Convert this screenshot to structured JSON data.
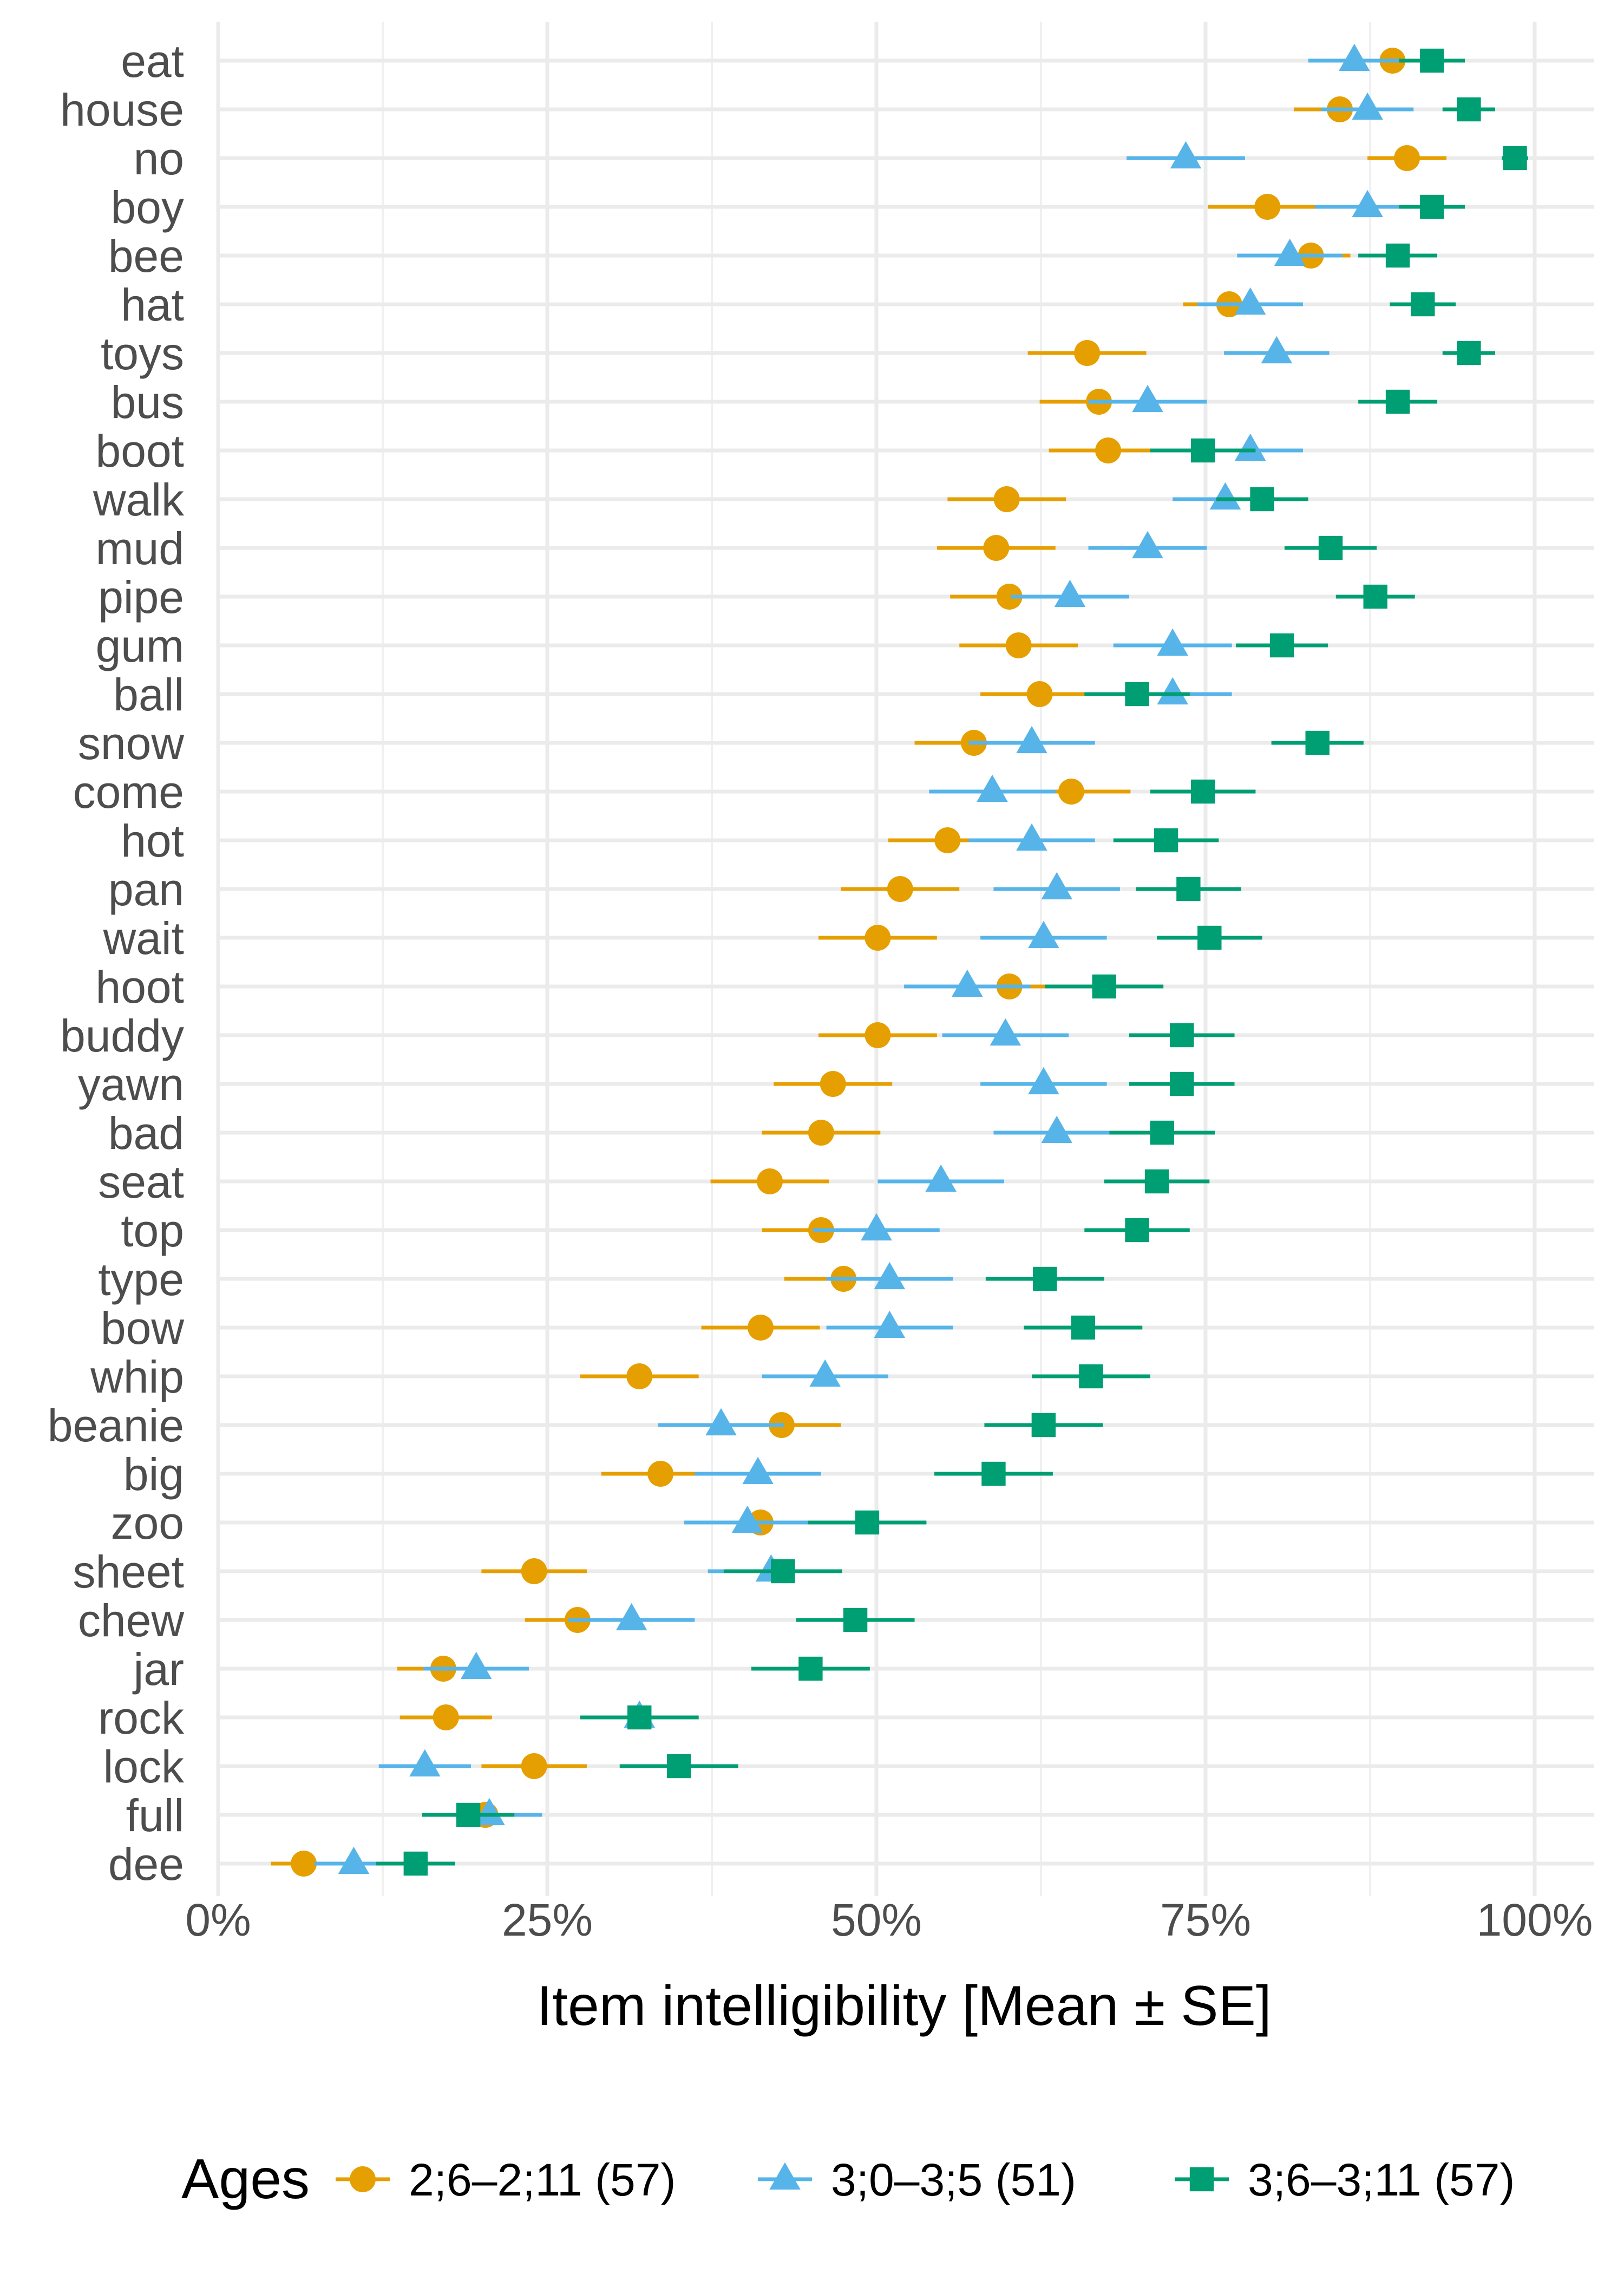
{
  "chart_data": {
    "type": "scatter",
    "subtype": "dot-plot-with-error-bars",
    "xlabel": "Item intelligibility [Mean ± SE]",
    "ylabel": "",
    "xlim": [
      0,
      1
    ],
    "x_ticks": [
      0,
      0.25,
      0.5,
      0.75,
      1.0
    ],
    "x_tick_labels": [
      "0%",
      "25%",
      "50%",
      "75%",
      "100%"
    ],
    "grid": true,
    "legend": {
      "title": "Ages",
      "position": "bottom"
    },
    "categories": [
      "eat",
      "house",
      "no",
      "boy",
      "bee",
      "hat",
      "toys",
      "bus",
      "boot",
      "walk",
      "mud",
      "pipe",
      "gum",
      "ball",
      "snow",
      "come",
      "hot",
      "pan",
      "wait",
      "hoot",
      "buddy",
      "yawn",
      "bad",
      "seat",
      "top",
      "type",
      "bow",
      "whip",
      "beanie",
      "big",
      "zoo",
      "sheet",
      "chew",
      "jar",
      "rock",
      "lock",
      "full",
      "dee"
    ],
    "series": [
      {
        "name": "2;6–2;11 (57)",
        "color": "#E69F00",
        "marker": "circle",
        "means": [
          0.892,
          0.852,
          0.903,
          0.797,
          0.83,
          0.768,
          0.66,
          0.669,
          0.676,
          0.599,
          0.591,
          0.601,
          0.608,
          0.624,
          0.574,
          0.648,
          0.554,
          0.518,
          0.501,
          0.601,
          0.501,
          0.467,
          0.458,
          0.419,
          0.458,
          0.475,
          0.412,
          0.32,
          0.428,
          0.336,
          0.412,
          0.24,
          0.273,
          0.171,
          0.173,
          0.24,
          0.203,
          0.065
        ],
        "se": [
          0.035,
          0.035,
          0.03,
          0.045,
          0.03,
          0.035,
          0.045,
          0.045,
          0.045,
          0.045,
          0.045,
          0.045,
          0.045,
          0.045,
          0.045,
          0.045,
          0.045,
          0.045,
          0.045,
          0.03,
          0.045,
          0.045,
          0.045,
          0.045,
          0.045,
          0.045,
          0.045,
          0.045,
          0.045,
          0.045,
          0.03,
          0.04,
          0.04,
          0.035,
          0.035,
          0.04,
          0.03,
          0.025
        ]
      },
      {
        "name": "3;0–3;5 (51)",
        "color": "#56B4E9",
        "marker": "triangle",
        "means": [
          0.863,
          0.873,
          0.735,
          0.873,
          0.814,
          0.784,
          0.804,
          0.706,
          0.784,
          0.765,
          0.706,
          0.647,
          0.725,
          0.725,
          0.618,
          0.588,
          0.618,
          0.637,
          0.627,
          0.569,
          0.598,
          0.627,
          0.637,
          0.549,
          0.5,
          0.51,
          0.51,
          0.461,
          0.382,
          0.41,
          0.402,
          0.42,
          0.314,
          0.196,
          0.32,
          0.157,
          0.206,
          0.103
        ],
        "se": [
          0.035,
          0.035,
          0.045,
          0.04,
          0.04,
          0.04,
          0.04,
          0.045,
          0.04,
          0.04,
          0.045,
          0.045,
          0.045,
          0.045,
          0.048,
          0.048,
          0.048,
          0.048,
          0.048,
          0.048,
          0.048,
          0.048,
          0.048,
          0.048,
          0.048,
          0.048,
          0.048,
          0.048,
          0.048,
          0.048,
          0.048,
          0.048,
          0.048,
          0.04,
          0.03,
          0.035,
          0.04,
          0.03
        ]
      },
      {
        "name": "3;6–3;11 (57)",
        "color": "#009E73",
        "marker": "square",
        "means": [
          0.922,
          0.95,
          0.985,
          0.922,
          0.896,
          0.915,
          0.95,
          0.896,
          0.748,
          0.793,
          0.845,
          0.879,
          0.808,
          0.698,
          0.835,
          0.748,
          0.72,
          0.737,
          0.753,
          0.673,
          0.732,
          0.732,
          0.717,
          0.713,
          0.698,
          0.628,
          0.657,
          0.663,
          0.627,
          0.589,
          0.493,
          0.429,
          0.484,
          0.45,
          0.32,
          0.35,
          0.19,
          0.15
        ],
        "se": [
          0.025,
          0.02,
          0.01,
          0.025,
          0.03,
          0.025,
          0.02,
          0.03,
          0.04,
          0.035,
          0.035,
          0.03,
          0.035,
          0.04,
          0.035,
          0.04,
          0.04,
          0.04,
          0.04,
          0.045,
          0.04,
          0.04,
          0.04,
          0.04,
          0.04,
          0.045,
          0.045,
          0.045,
          0.045,
          0.045,
          0.045,
          0.045,
          0.045,
          0.045,
          0.045,
          0.045,
          0.035,
          0.03
        ]
      }
    ]
  }
}
